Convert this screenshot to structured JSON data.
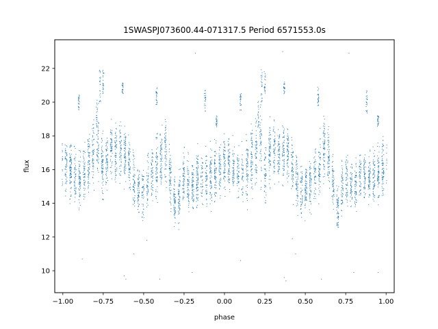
{
  "chart_data": {
    "type": "scatter",
    "title": "1SWASPJ073600.44-071317.5 Period 6571553.0s",
    "xlabel": "phase",
    "ylabel": "flux",
    "xlim": [
      -1.05,
      1.05
    ],
    "ylim": [
      8.7,
      23.7
    ],
    "xticks": [
      {
        "value": -1.0,
        "label": "−1.00"
      },
      {
        "value": -0.75,
        "label": "−0.75"
      },
      {
        "value": -0.5,
        "label": "−0.50"
      },
      {
        "value": -0.25,
        "label": "−0.25"
      },
      {
        "value": 0.0,
        "label": "0.00"
      },
      {
        "value": 0.25,
        "label": "0.25"
      },
      {
        "value": 0.5,
        "label": "0.50"
      },
      {
        "value": 0.75,
        "label": "0.75"
      },
      {
        "value": 1.0,
        "label": "1.00"
      }
    ],
    "yticks": [
      {
        "value": 10,
        "label": "10"
      },
      {
        "value": 12,
        "label": "12"
      },
      {
        "value": 14,
        "label": "14"
      },
      {
        "value": 16,
        "label": "16"
      },
      {
        "value": 18,
        "label": "18"
      },
      {
        "value": 20,
        "label": "20"
      },
      {
        "value": 22,
        "label": "22"
      }
    ],
    "grid": false,
    "marker_color": "#1f77b4",
    "series_profile": {
      "x": [
        -1.0,
        -0.95,
        -0.9,
        -0.85,
        -0.8,
        -0.775,
        -0.75,
        -0.7,
        -0.65,
        -0.6,
        -0.55,
        -0.5,
        -0.45,
        -0.4,
        -0.375,
        -0.35,
        -0.3,
        -0.25,
        -0.2,
        -0.15,
        -0.1,
        -0.05,
        0.0,
        0.05,
        0.1,
        0.15,
        0.2,
        0.225,
        0.25,
        0.3,
        0.35,
        0.4,
        0.45,
        0.5,
        0.55,
        0.6,
        0.625,
        0.65,
        0.7,
        0.75,
        0.8,
        0.85,
        0.9,
        0.95,
        1.0
      ],
      "y": [
        16.2,
        16.0,
        15.3,
        16.3,
        17.2,
        17.8,
        15.8,
        17.3,
        17.0,
        16.9,
        15.0,
        14.6,
        15.7,
        16.4,
        17.5,
        16.5,
        13.6,
        15.7,
        14.9,
        15.8,
        15.5,
        15.8,
        16.4,
        16.2,
        15.3,
        16.3,
        17.2,
        17.8,
        15.8,
        17.3,
        17.0,
        16.9,
        15.0,
        14.6,
        15.7,
        16.4,
        17.5,
        16.5,
        13.6,
        15.7,
        14.9,
        15.8,
        15.5,
        15.8,
        16.4
      ],
      "spread": [
        1.0,
        1.0,
        1.1,
        1.2,
        1.3,
        1.3,
        1.2,
        1.1,
        1.1,
        1.0,
        1.0,
        1.0,
        1.0,
        1.2,
        1.2,
        1.1,
        0.8,
        1.0,
        1.0,
        1.0,
        1.0,
        1.1,
        1.0,
        1.0,
        1.1,
        1.2,
        1.3,
        1.3,
        1.2,
        1.1,
        1.1,
        1.0,
        1.0,
        1.0,
        1.0,
        1.2,
        1.2,
        1.1,
        0.8,
        1.0,
        1.0,
        1.0,
        1.0,
        1.1,
        1.0
      ]
    }
  }
}
